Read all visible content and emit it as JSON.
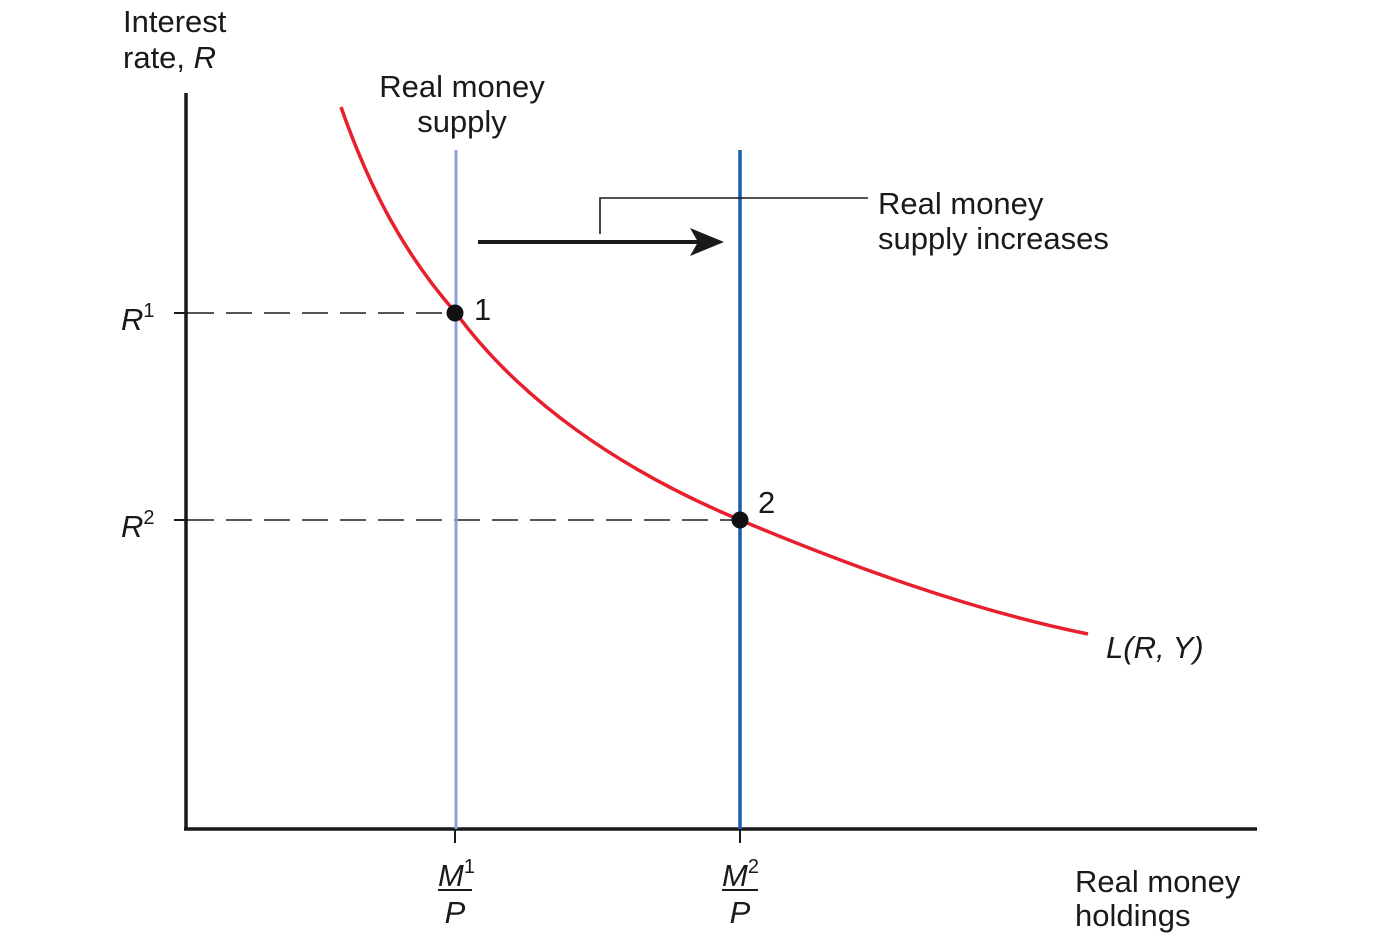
{
  "chart_data": {
    "type": "line",
    "title": "",
    "ylabel": {
      "line1": "Interest",
      "line2_prefix": "rate, ",
      "line2_var": "R"
    },
    "xlabel": {
      "line1": "Real money",
      "line2": "holdings"
    },
    "supply_label": {
      "line1": "Real money",
      "line2": "supply"
    },
    "shift_label": {
      "line1": "Real money",
      "line2": "supply increases"
    },
    "demand_curve": {
      "label": "L(R, Y)"
    },
    "equilibria": [
      {
        "id": "1",
        "interest_label": {
          "base": "R",
          "sup": "1"
        },
        "supply_label": {
          "num": "M",
          "sup": "1",
          "den": "P"
        }
      },
      {
        "id": "2",
        "interest_label": {
          "base": "R",
          "sup": "2"
        },
        "supply_label": {
          "num": "M",
          "sup": "2",
          "den": "P"
        }
      }
    ],
    "colors": {
      "demand": "#e8202e",
      "supply_initial": "#8c9fd9",
      "supply_new": "#1a5cb0",
      "axis": "#1a1a1a",
      "dash": "#555555"
    }
  }
}
